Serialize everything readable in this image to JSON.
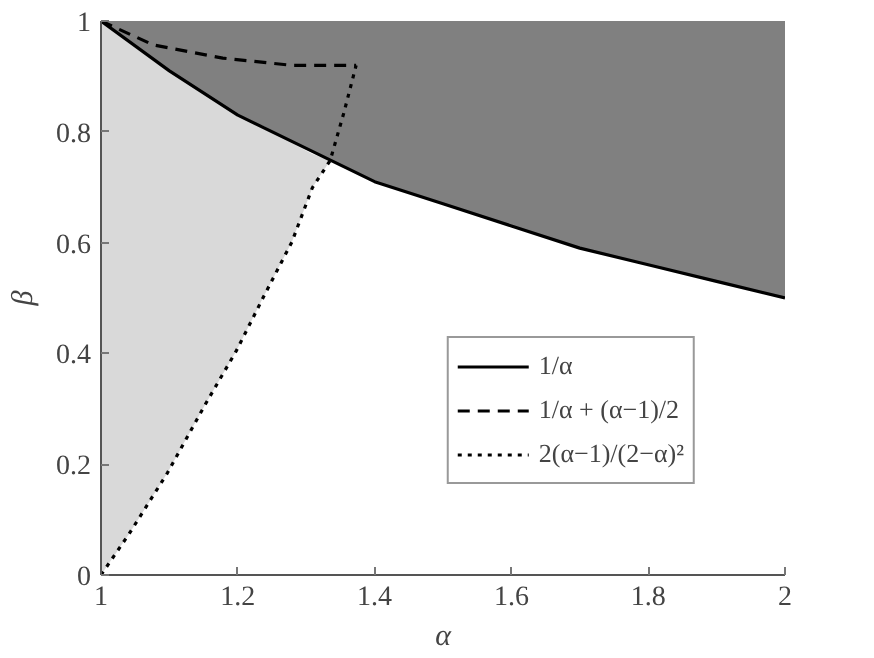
{
  "chart_data": {
    "type": "line",
    "xlabel": "α",
    "ylabel": "β",
    "xlim": [
      1,
      2
    ],
    "ylim": [
      0,
      1
    ],
    "xticks": [
      1,
      1.2,
      1.4,
      1.6,
      1.8,
      2
    ],
    "yticks": [
      0,
      0.2,
      0.4,
      0.6,
      0.8,
      1
    ],
    "grid": false,
    "legend": "bottom right",
    "marker": "none",
    "series": [
      {
        "name": "1/α",
        "color": "#000000",
        "line_style": "solid",
        "x": [
          1,
          1.1,
          1.2,
          1.3,
          1.4,
          1.5,
          1.6,
          1.7,
          1.8,
          1.9,
          2
        ],
        "values": [
          1,
          0.91,
          0.83,
          0.77,
          0.71,
          0.67,
          0.63,
          0.59,
          0.56,
          0.53,
          0.5
        ],
        "lower": [
          1,
          0.91,
          0.83,
          0.77,
          0.71,
          0.67,
          0.63,
          0.59,
          0.56,
          0.53,
          0.5
        ],
        "upper": [
          1,
          1,
          1,
          1,
          1,
          1,
          1,
          1,
          1,
          1,
          1
        ]
      },
      {
        "name": "1/α + (α−1)/2",
        "color": "#000000",
        "line_style": "dashed",
        "x": [
          1,
          1.076,
          1.178,
          1.279,
          1.373
        ],
        "values": [
          1,
          0.957,
          0.933,
          0.92,
          0.92
        ]
      },
      {
        "name": "2(α−1)/(2−α)²",
        "color": "#000000",
        "line_style": "dotted",
        "x": [
          1,
          1.041,
          1.097,
          1.152,
          1.198,
          1.238,
          1.279,
          1.309,
          1.335,
          1.355,
          1.373
        ],
        "values": [
          0,
          0.074,
          0.184,
          0.307,
          0.405,
          0.503,
          0.601,
          0.699,
          0.748,
          0.834,
          0.92
        ],
        "lower": [
          0,
          0.074,
          0.184,
          0.307,
          0.405,
          0.503,
          0.601,
          0.699,
          0.748,
          null,
          null
        ],
        "upper": [
          1,
          0.96,
          0.91,
          0.87,
          0.83,
          0.81,
          0.78,
          0.76,
          0.748,
          null,
          null
        ]
      }
    ]
  }
}
